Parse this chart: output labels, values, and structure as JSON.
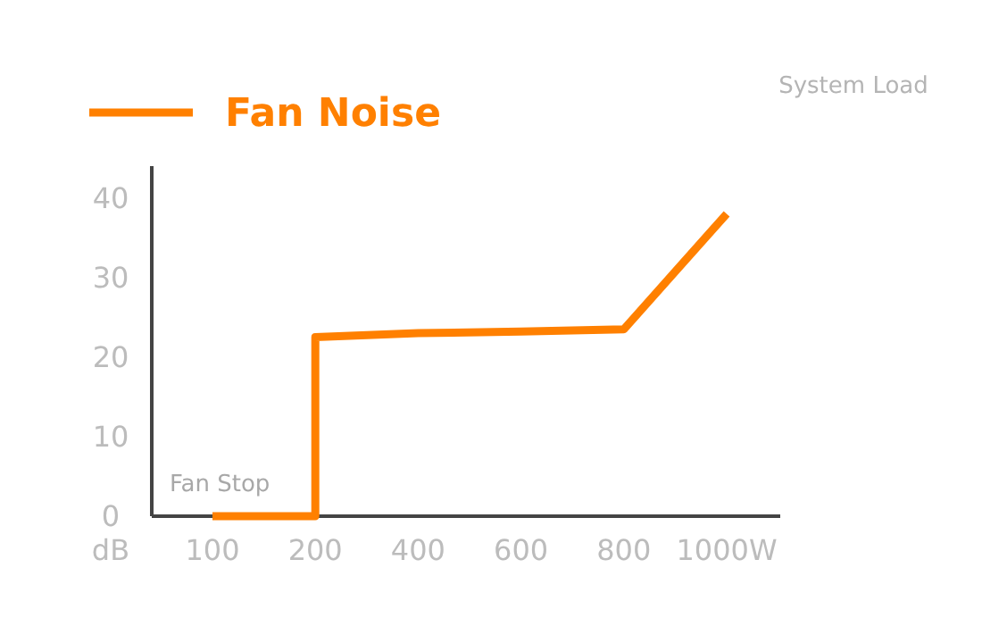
{
  "chart_data": {
    "type": "line",
    "ylabel": "dB",
    "annotations": [
      "Fan Stop",
      "System Load"
    ],
    "categories": [
      "100",
      "200",
      "400",
      "600",
      "800",
      "1000W"
    ],
    "series": [
      {
        "name": "Fan Noise",
        "color": "#ff8000",
        "x": [
          "100",
          "200",
          "200",
          "400",
          "600",
          "800",
          "1000W"
        ],
        "values": [
          0,
          0,
          22.5,
          23,
          23.2,
          23.5,
          38
        ]
      }
    ],
    "ylim": [
      0,
      44
    ],
    "yticks": [
      0,
      10,
      20,
      30,
      40
    ],
    "grid": false,
    "legend": "top left",
    "marker": "none",
    "line_style": "solid"
  }
}
